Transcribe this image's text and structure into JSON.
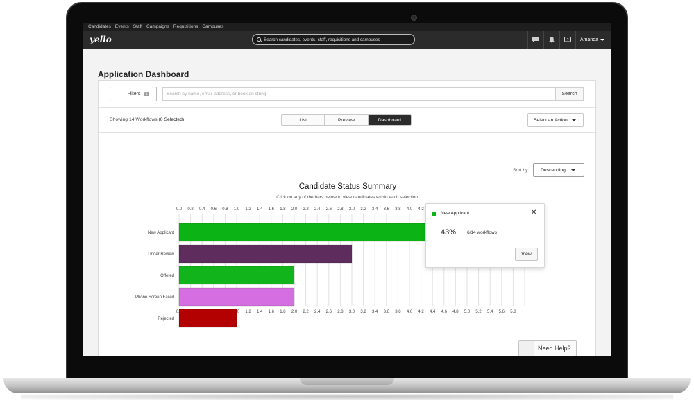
{
  "nav": {
    "links": [
      "Candidates",
      "Events",
      "Staff",
      "Campaigns",
      "Requisitions",
      "Campuses"
    ],
    "logo": "yello",
    "search_placeholder": "Search candidates, events, staff, requisitions and campuses",
    "user": "Amanda"
  },
  "page": {
    "title": "Application Dashboard"
  },
  "filters": {
    "button_label": "Filters",
    "count": "1",
    "search_placeholder": "Search by name, email address, or boolean string",
    "search_button": "Search"
  },
  "toolbar": {
    "showing_prefix": "Showing 14 Workflows",
    "showing_selected": "(0 Selected)",
    "views": [
      "List",
      "Preview",
      "Dashboard"
    ],
    "active_view": "Dashboard",
    "action_label": "Select an Action"
  },
  "sort": {
    "label": "Sort by:",
    "value": "Descending"
  },
  "colors": {
    "new_applicant": "#0cb314",
    "under_review": "#5e2d5e",
    "offered": "#11b51b",
    "phone_screen_failed": "#d56ee0",
    "rejected": "#b30000",
    "grid": "#e2e2e2"
  },
  "chart_data": {
    "type": "bar",
    "orientation": "horizontal",
    "title": "Candidate Status Summary",
    "subtitle": "Click on any of the bars below to view candidates within each selection.",
    "categories": [
      "New Applicant",
      "Under Review",
      "Offered",
      "Phone Screen Failed",
      "Rejected"
    ],
    "values": [
      6,
      3,
      2,
      2,
      1
    ],
    "xlim": [
      0,
      6
    ],
    "top_ticks": [
      "0.0",
      "0.2",
      "0.4",
      "0.6",
      "0.8",
      "1.0",
      "1.2",
      "1.4",
      "1.6",
      "1.8",
      "2.0",
      "2.2",
      "2.4",
      "2.6",
      "2.8",
      "3.0",
      "3.2",
      "3.4",
      "3.6",
      "3.8",
      "4.0",
      "4.2"
    ],
    "bottom_ticks": [
      "0.0",
      "0.2",
      "0.4",
      "0.6",
      "0.8",
      "1.0",
      "1.2",
      "1.4",
      "1.6",
      "1.8",
      "2.0",
      "2.2",
      "2.4",
      "2.6",
      "2.8",
      "3.0",
      "3.2",
      "3.4",
      "3.6",
      "3.8",
      "4.0",
      "4.2",
      "4.4",
      "4.6",
      "4.8",
      "5.0",
      "5.2",
      "5.4",
      "5.6",
      "5.8"
    ],
    "grid": true
  },
  "popover": {
    "label": "New Applicant",
    "percent": "43%",
    "count": "6/14 workflows",
    "button": "View"
  },
  "help": {
    "label": "Need Help?"
  }
}
